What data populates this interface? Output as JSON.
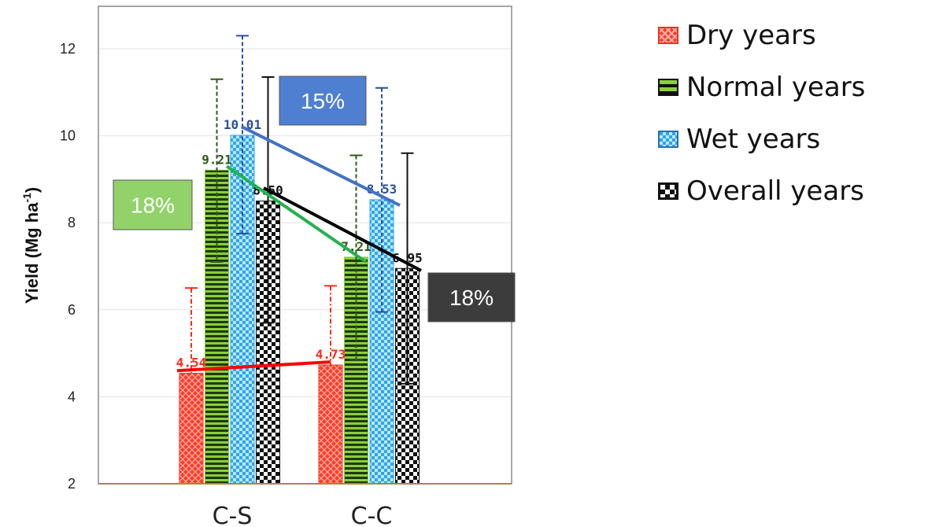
{
  "chart_data": {
    "type": "bar",
    "title": "",
    "xlabel": "",
    "ylabel": "Yield (Mg ha",
    "ylabel_sup": "-1",
    "ylabel_close": ")",
    "ylim": [
      2,
      13
    ],
    "yticks": [
      2,
      4,
      6,
      8,
      10,
      12
    ],
    "categories": [
      "C-S",
      "C-C"
    ],
    "series": [
      {
        "name": "Dry years",
        "values": [
          4.54,
          4.73
        ],
        "labels": [
          "4.54",
          "4.73"
        ],
        "error_upper": [
          6.5,
          6.55
        ],
        "color": "#ff2a1a",
        "label_color": "#ff2a1a",
        "pattern": "dry"
      },
      {
        "name": "Normal years",
        "values": [
          9.21,
          7.21
        ],
        "labels": [
          "9.21",
          "7.21"
        ],
        "error_upper": [
          11.3,
          9.55
        ],
        "error_lower": [
          7.1,
          4.85
        ],
        "color": "#8ccf3c",
        "label_color": "#2e5a1a",
        "pattern": "normal"
      },
      {
        "name": "Wet years",
        "values": [
          10.01,
          8.53
        ],
        "labels": [
          "10.01",
          "8.53"
        ],
        "error_upper": [
          12.3,
          11.1
        ],
        "error_lower": [
          7.75,
          5.95
        ],
        "color": "#2aa7ec",
        "label_color": "#2a4fa0",
        "pattern": "wet"
      },
      {
        "name": "Overall years",
        "values": [
          8.5,
          6.95
        ],
        "labels": [
          "8.50",
          "6.95"
        ],
        "error_upper": [
          11.35,
          9.6
        ],
        "error_lower": [
          5.7,
          4.3
        ],
        "color": "#111111",
        "label_color": "#111111",
        "pattern": "overall"
      }
    ],
    "trend_lines": [
      {
        "series": "Dry years",
        "from": 4.6,
        "to": 4.8,
        "color": "#ff0000"
      },
      {
        "series": "Normal years",
        "from": 9.3,
        "to": 7.1,
        "color": "#22b24c"
      },
      {
        "series": "Wet years",
        "from": 10.2,
        "to": 8.4,
        "color": "#4472c4"
      },
      {
        "series": "Overall years",
        "from": 8.8,
        "to": 6.9,
        "color": "#000000"
      }
    ],
    "annotations": [
      {
        "text": "15%",
        "bg": "#4f7fd1"
      },
      {
        "text": "18%",
        "bg": "#92d26a"
      },
      {
        "text": "18%",
        "bg": "#3c3c3c"
      }
    ],
    "legend": "right",
    "grid": true
  }
}
